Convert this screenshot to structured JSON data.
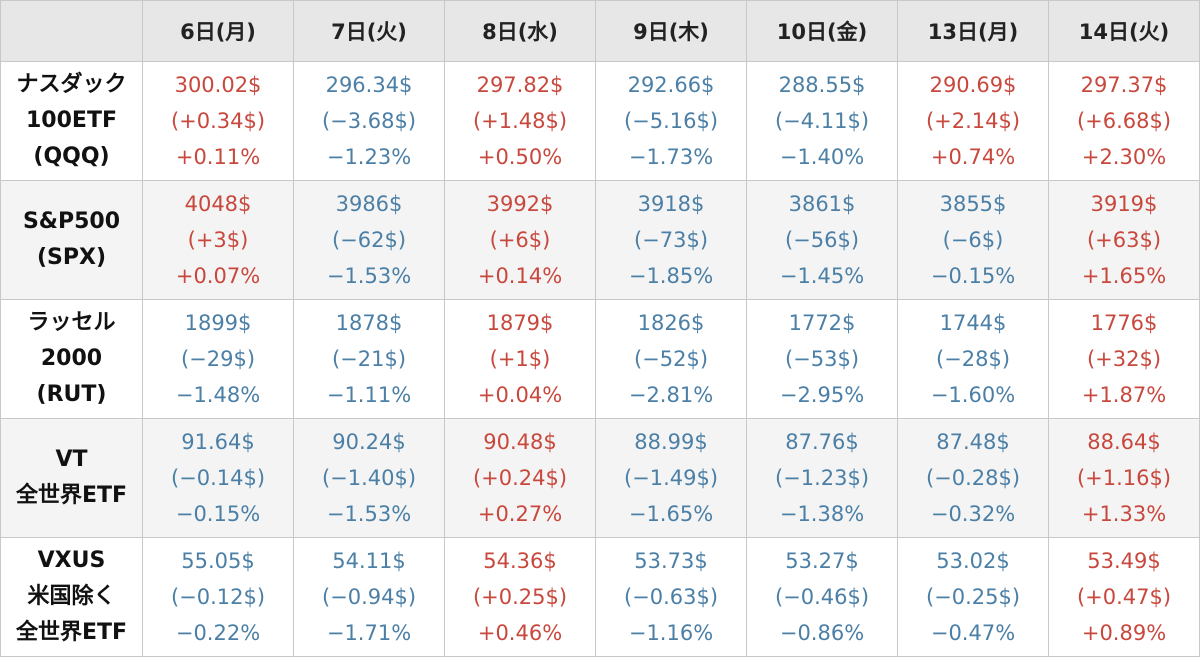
{
  "days": [
    "6日(月)",
    "7日(火)",
    "8日(水)",
    "9日(木)",
    "10日(金)",
    "13日(月)",
    "14日(火)"
  ],
  "colors": {
    "up": "#c8483d",
    "down": "#4b7fa6",
    "header_bg": "#e7e7e7",
    "shade_bg": "#f4f4f4"
  },
  "rows": [
    {
      "label": [
        "ナスダック",
        "100ETF",
        "(QQQ)"
      ],
      "cells": [
        {
          "price": "300.02$",
          "change": "(+0.34$)",
          "pct": "+0.11%",
          "dir": "up"
        },
        {
          "price": "296.34$",
          "change": "(−3.68$)",
          "pct": "−1.23%",
          "dir": "down"
        },
        {
          "price": "297.82$",
          "change": "(+1.48$)",
          "pct": "+0.50%",
          "dir": "up"
        },
        {
          "price": "292.66$",
          "change": "(−5.16$)",
          "pct": "−1.73%",
          "dir": "down"
        },
        {
          "price": "288.55$",
          "change": "(−4.11$)",
          "pct": "−1.40%",
          "dir": "down"
        },
        {
          "price": "290.69$",
          "change": "(+2.14$)",
          "pct": "+0.74%",
          "dir": "up"
        },
        {
          "price": "297.37$",
          "change": "(+6.68$)",
          "pct": "+2.30%",
          "dir": "up"
        }
      ]
    },
    {
      "label": [
        "S&P500",
        "(SPX)"
      ],
      "cells": [
        {
          "price": "4048$",
          "change": "(+3$)",
          "pct": "+0.07%",
          "dir": "up"
        },
        {
          "price": "3986$",
          "change": "(−62$)",
          "pct": "−1.53%",
          "dir": "down"
        },
        {
          "price": "3992$",
          "change": "(+6$)",
          "pct": "+0.14%",
          "dir": "up"
        },
        {
          "price": "3918$",
          "change": "(−73$)",
          "pct": "−1.85%",
          "dir": "down"
        },
        {
          "price": "3861$",
          "change": "(−56$)",
          "pct": "−1.45%",
          "dir": "down"
        },
        {
          "price": "3855$",
          "change": "(−6$)",
          "pct": "−0.15%",
          "dir": "down"
        },
        {
          "price": "3919$",
          "change": "(+63$)",
          "pct": "+1.65%",
          "dir": "up"
        }
      ]
    },
    {
      "label": [
        "ラッセル",
        "2000",
        "(RUT)"
      ],
      "cells": [
        {
          "price": "1899$",
          "change": "(−29$)",
          "pct": "−1.48%",
          "dir": "down"
        },
        {
          "price": "1878$",
          "change": "(−21$)",
          "pct": "−1.11%",
          "dir": "down"
        },
        {
          "price": "1879$",
          "change": "(+1$)",
          "pct": "+0.04%",
          "dir": "up"
        },
        {
          "price": "1826$",
          "change": "(−52$)",
          "pct": "−2.81%",
          "dir": "down"
        },
        {
          "price": "1772$",
          "change": "(−53$)",
          "pct": "−2.95%",
          "dir": "down"
        },
        {
          "price": "1744$",
          "change": "(−28$)",
          "pct": "−1.60%",
          "dir": "down"
        },
        {
          "price": "1776$",
          "change": "(+32$)",
          "pct": "+1.87%",
          "dir": "up"
        }
      ]
    },
    {
      "label": [
        "VT",
        "全世界ETF"
      ],
      "cells": [
        {
          "price": "91.64$",
          "change": "(−0.14$)",
          "pct": "−0.15%",
          "dir": "down"
        },
        {
          "price": "90.24$",
          "change": "(−1.40$)",
          "pct": "−1.53%",
          "dir": "down"
        },
        {
          "price": "90.48$",
          "change": "(+0.24$)",
          "pct": "+0.27%",
          "dir": "up"
        },
        {
          "price": "88.99$",
          "change": "(−1.49$)",
          "pct": "−1.65%",
          "dir": "down"
        },
        {
          "price": "87.76$",
          "change": "(−1.23$)",
          "pct": "−1.38%",
          "dir": "down"
        },
        {
          "price": "87.48$",
          "change": "(−0.28$)",
          "pct": "−0.32%",
          "dir": "down"
        },
        {
          "price": "88.64$",
          "change": "(+1.16$)",
          "pct": "+1.33%",
          "dir": "up"
        }
      ]
    },
    {
      "label": [
        "VXUS",
        "米国除く",
        "全世界ETF"
      ],
      "cells": [
        {
          "price": "55.05$",
          "change": "(−0.12$)",
          "pct": "−0.22%",
          "dir": "down"
        },
        {
          "price": "54.11$",
          "change": "(−0.94$)",
          "pct": "−1.71%",
          "dir": "down"
        },
        {
          "price": "54.36$",
          "change": "(+0.25$)",
          "pct": "+0.46%",
          "dir": "up"
        },
        {
          "price": "53.73$",
          "change": "(−0.63$)",
          "pct": "−1.16%",
          "dir": "down"
        },
        {
          "price": "53.27$",
          "change": "(−0.46$)",
          "pct": "−0.86%",
          "dir": "down"
        },
        {
          "price": "53.02$",
          "change": "(−0.25$)",
          "pct": "−0.47%",
          "dir": "down"
        },
        {
          "price": "53.49$",
          "change": "(+0.47$)",
          "pct": "+0.89%",
          "dir": "up"
        }
      ]
    }
  ]
}
